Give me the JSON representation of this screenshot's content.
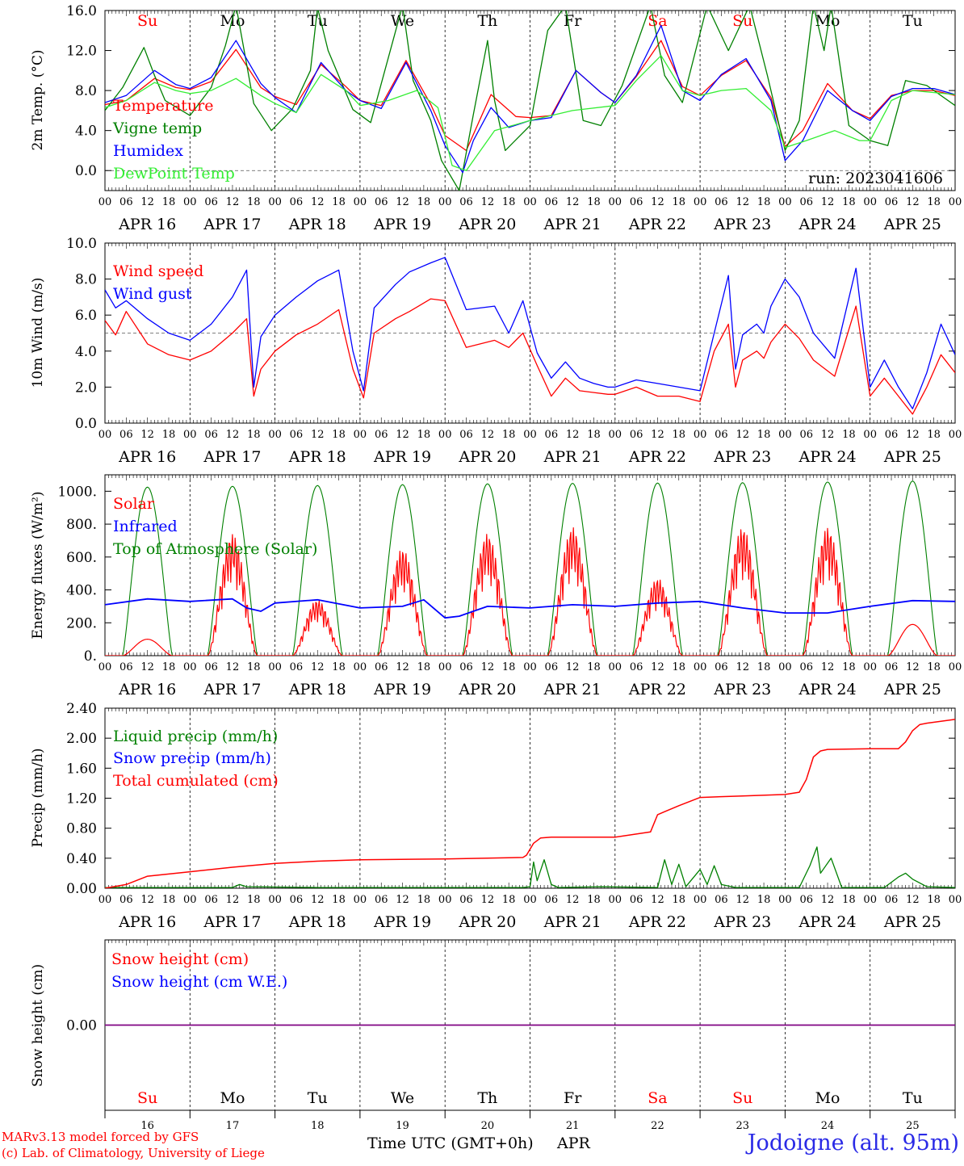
{
  "footer": {
    "credit_line1": "MARv3.13 model forced by GFS",
    "credit_line2": "(c) Lab. of Climatology, University of Liege",
    "x_title": "Time UTC (GMT+0h)",
    "x_month": "APR",
    "station": "Jodoigne (alt. 95m)"
  },
  "axis": {
    "hour_labels": [
      "00",
      "06",
      "12",
      "18"
    ],
    "final_hour_label": "00",
    "date_labels": [
      "APR 16",
      "APR 17",
      "APR 18",
      "APR 19",
      "APR 20",
      "APR 21",
      "APR 22",
      "APR 23",
      "APR 24",
      "APR 25"
    ],
    "day_names": [
      "Su",
      "Mo",
      "Tu",
      "We",
      "Th",
      "Fr",
      "Sa",
      "Su",
      "Mo",
      "Tu"
    ],
    "weekend_days": [
      0,
      6,
      7
    ],
    "day_numbers": [
      "16",
      "17",
      "18",
      "19",
      "20",
      "21",
      "22",
      "23",
      "24",
      "25"
    ]
  },
  "colors": {
    "red": "#ff0000",
    "green": "#008000",
    "blue": "#0000ff",
    "lightgreen": "#33ee33",
    "purple": "#800080"
  },
  "chart_data": [
    {
      "type": "line",
      "ylabel": "2m Temp. (°C)",
      "ylim": [
        -2,
        16
      ],
      "yticks": [
        "0.0",
        "4.0",
        "8.0",
        "12.0",
        "16.0"
      ],
      "yticks_values": [
        0,
        4,
        8,
        12,
        16
      ],
      "dashed_reference": 0,
      "annotation": "run: 2023041606",
      "x_unit": "hours since APR 16 00 UTC",
      "series": [
        {
          "name": "Temperature",
          "color": "#ff0000",
          "x": [
            0,
            6,
            14,
            20,
            24,
            30,
            37,
            44,
            48,
            54,
            61,
            68,
            72,
            78,
            85,
            92,
            96,
            102,
            109,
            116,
            120,
            126,
            133,
            140,
            144,
            150,
            157,
            163,
            168,
            174,
            181,
            188,
            192,
            197,
            204,
            211,
            216,
            222,
            228,
            234,
            240
          ],
          "values": [
            6.6,
            7.0,
            9.2,
            8.3,
            8.1,
            8.9,
            12.1,
            8.3,
            7.4,
            6.6,
            10.6,
            8.4,
            7.0,
            6.5,
            11.0,
            6.6,
            3.5,
            2.0,
            7.6,
            5.4,
            5.3,
            5.5,
            10.0,
            7.8,
            6.8,
            9.4,
            13.0,
            8.4,
            7.5,
            9.5,
            11.0,
            7.3,
            2.4,
            4.0,
            8.7,
            6.0,
            5.2,
            7.5,
            8.0,
            8.0,
            7.5
          ]
        },
        {
          "name": "Vigne temp",
          "color": "#008000",
          "x": [
            0,
            5,
            11,
            14,
            17,
            24,
            30,
            34,
            37,
            42,
            47,
            53,
            58,
            60,
            63,
            70,
            75,
            84,
            87,
            92,
            95,
            100,
            104,
            108,
            110,
            113,
            120,
            125,
            130,
            132,
            135,
            140,
            146,
            154,
            158,
            163,
            170,
            176,
            182,
            187,
            192,
            196,
            200,
            203,
            205,
            210,
            216,
            221,
            226,
            232,
            240
          ],
          "values": [
            6.0,
            8.3,
            12.3,
            9.5,
            7.0,
            5.5,
            8.3,
            12.5,
            16.5,
            6.7,
            4.0,
            6.2,
            10.0,
            16.3,
            12.0,
            6.1,
            4.8,
            16.5,
            9.0,
            5.0,
            1.0,
            -2.0,
            5.6,
            13.0,
            7.0,
            2.0,
            4.5,
            14.0,
            16.5,
            12.0,
            5.0,
            4.5,
            8.5,
            16.5,
            9.5,
            6.8,
            16.5,
            12.0,
            16.5,
            9.5,
            2.0,
            5.0,
            16.5,
            12.0,
            16.5,
            4.5,
            3.0,
            2.5,
            9.0,
            8.5,
            6.5
          ]
        },
        {
          "name": "Humidex",
          "color": "#0000ff",
          "x": [
            0,
            6,
            14,
            20,
            24,
            30,
            37,
            44,
            48,
            54,
            61,
            68,
            72,
            78,
            85,
            92,
            96,
            101,
            104,
            109,
            114,
            120,
            126,
            133,
            140,
            144,
            150,
            157,
            163,
            168,
            174,
            181,
            188,
            192,
            197,
            204,
            211,
            216,
            222,
            228,
            234,
            240
          ],
          "values": [
            6.8,
            7.5,
            10.0,
            8.6,
            8.2,
            9.3,
            13.0,
            8.7,
            7.3,
            5.8,
            10.8,
            8.0,
            7.0,
            6.2,
            10.8,
            6.0,
            2.5,
            -0.2,
            3.0,
            6.3,
            4.3,
            5.0,
            5.3,
            10.0,
            7.8,
            6.8,
            9.5,
            14.5,
            8.0,
            7.0,
            9.6,
            11.2,
            7.0,
            1.0,
            3.0,
            8.0,
            6.0,
            5.0,
            7.4,
            8.2,
            8.2,
            7.6
          ]
        },
        {
          "name": "DewPoint Temp",
          "color": "#33ee33",
          "x": [
            0,
            6,
            14,
            20,
            24,
            30,
            37,
            44,
            48,
            54,
            61,
            68,
            72,
            80,
            88,
            94,
            98,
            102,
            110,
            120,
            132,
            144,
            150,
            157,
            163,
            168,
            174,
            181,
            188,
            192,
            198,
            206,
            213,
            216,
            222,
            228,
            234,
            240
          ],
          "values": [
            6.3,
            7.0,
            8.8,
            8.0,
            7.7,
            8.0,
            9.2,
            7.5,
            6.7,
            5.8,
            9.6,
            8.0,
            6.5,
            7.0,
            8.0,
            6.3,
            0.5,
            0.0,
            4.0,
            5.0,
            6.0,
            6.5,
            9.0,
            11.5,
            8.0,
            7.5,
            8.0,
            8.2,
            6.0,
            2.3,
            3.0,
            4.0,
            3.0,
            3.0,
            7.0,
            8.0,
            7.8,
            7.6
          ]
        }
      ]
    },
    {
      "type": "line",
      "ylabel": "10m Wind (m/s)",
      "ylim": [
        0,
        10
      ],
      "yticks": [
        "0.0",
        "2.0",
        "4.0",
        "6.0",
        "8.0",
        "10.0"
      ],
      "yticks_values": [
        0,
        2,
        4,
        6,
        8,
        10
      ],
      "dashed_reference": 5,
      "x_unit": "hours since APR 16 00 UTC",
      "series": [
        {
          "name": "Wind speed",
          "color": "#ff0000",
          "x": [
            0,
            3,
            6,
            12,
            18,
            24,
            30,
            36,
            40,
            42,
            44,
            48,
            54,
            60,
            66,
            70,
            73,
            76,
            82,
            86,
            92,
            96,
            102,
            110,
            114,
            118,
            122,
            126,
            130,
            134,
            138,
            142,
            144,
            150,
            156,
            162,
            168,
            172,
            176,
            178,
            180,
            184,
            186,
            188,
            192,
            196,
            200,
            206,
            212,
            216,
            220,
            224,
            228,
            232,
            236,
            240
          ],
          "values": [
            5.7,
            4.9,
            6.2,
            4.4,
            3.8,
            3.5,
            4.0,
            5.0,
            5.8,
            1.5,
            3.0,
            4.0,
            4.9,
            5.5,
            6.3,
            3.0,
            1.4,
            5.0,
            5.8,
            6.2,
            6.9,
            6.8,
            4.2,
            4.6,
            4.2,
            5.0,
            3.2,
            1.5,
            2.5,
            1.8,
            1.7,
            1.6,
            1.6,
            2.0,
            1.5,
            1.5,
            1.2,
            4.0,
            5.5,
            2.0,
            3.5,
            4.0,
            3.6,
            4.5,
            5.5,
            4.7,
            3.5,
            2.6,
            6.5,
            1.5,
            2.5,
            1.5,
            0.5,
            2.0,
            3.8,
            2.8
          ]
        },
        {
          "name": "Wind gust",
          "color": "#0000ff",
          "x": [
            0,
            3,
            6,
            12,
            18,
            24,
            30,
            36,
            40,
            42,
            44,
            48,
            54,
            60,
            66,
            70,
            73,
            76,
            82,
            86,
            92,
            96,
            102,
            110,
            114,
            118,
            122,
            126,
            130,
            134,
            138,
            142,
            144,
            150,
            156,
            162,
            168,
            172,
            176,
            178,
            180,
            184,
            186,
            188,
            192,
            196,
            200,
            206,
            212,
            216,
            220,
            224,
            228,
            232,
            236,
            240
          ],
          "values": [
            7.4,
            6.4,
            6.8,
            5.8,
            5.0,
            4.6,
            5.5,
            7.0,
            8.5,
            2.0,
            4.8,
            6.0,
            7.0,
            7.9,
            8.5,
            4.0,
            1.8,
            6.4,
            7.7,
            8.4,
            8.9,
            9.2,
            6.3,
            6.5,
            5.0,
            6.8,
            3.9,
            2.5,
            3.4,
            2.5,
            2.2,
            2.0,
            2.0,
            2.4,
            2.2,
            2.0,
            1.8,
            5.0,
            8.2,
            3.0,
            4.9,
            5.5,
            5.0,
            6.5,
            8.0,
            7.0,
            5.0,
            3.6,
            8.6,
            2.0,
            3.5,
            2.0,
            0.8,
            2.8,
            5.5,
            3.8
          ]
        }
      ]
    },
    {
      "type": "line",
      "ylabel": "Energy fluxes (W/m²)",
      "ylim": [
        0,
        1100
      ],
      "yticks": [
        "0.",
        "200.",
        "400.",
        "600.",
        "800.",
        "1000."
      ],
      "yticks_values": [
        0,
        200,
        400,
        600,
        800,
        1000
      ],
      "x_unit": "hours since APR 16 00 UTC",
      "toa_peak_by_day": [
        1025,
        1030,
        1035,
        1040,
        1045,
        1048,
        1050,
        1052,
        1056,
        1062
      ],
      "solar_peak_by_day": [
        100,
        740,
        340,
        650,
        740,
        780,
        470,
        780,
        780,
        190
      ],
      "series": [
        {
          "name": "Solar",
          "color": "#ff0000"
        },
        {
          "name": "Infrared",
          "color": "#0000ff",
          "x": [
            0,
            12,
            24,
            36,
            40,
            44,
            48,
            60,
            72,
            84,
            90,
            96,
            100,
            108,
            120,
            132,
            144,
            156,
            168,
            180,
            192,
            204,
            216,
            228,
            240
          ],
          "values": [
            310,
            345,
            330,
            345,
            290,
            270,
            320,
            340,
            290,
            300,
            340,
            230,
            240,
            300,
            290,
            310,
            300,
            320,
            330,
            290,
            260,
            260,
            300,
            335,
            330
          ]
        },
        {
          "name": "Top of Atmosphere (Solar)",
          "color": "#008000"
        }
      ]
    },
    {
      "type": "line",
      "ylabel": "Precip (mm/h)",
      "ylim": [
        0,
        2.4
      ],
      "yticks": [
        "0.00",
        "0.40",
        "0.80",
        "1.20",
        "1.60",
        "2.00",
        "2.40"
      ],
      "yticks_values": [
        0,
        0.4,
        0.8,
        1.2,
        1.6,
        2.0,
        2.4
      ],
      "x_unit": "hours since APR 16 00 UTC",
      "series": [
        {
          "name": "Liquid precip (mm/h)",
          "color": "#008000",
          "x": [
            0,
            36,
            38,
            40,
            60,
            118,
            120,
            121,
            122,
            124,
            126,
            128,
            140,
            156,
            158,
            160,
            162,
            164,
            168,
            170,
            172,
            174,
            178,
            180,
            196,
            199,
            201,
            202,
            205,
            208,
            220,
            224,
            226,
            228,
            232,
            240
          ],
          "values": [
            0.01,
            0.01,
            0.05,
            0.02,
            0.01,
            0.01,
            0.02,
            0.35,
            0.1,
            0.38,
            0.05,
            0.01,
            0.02,
            0.01,
            0.38,
            0.05,
            0.32,
            0.02,
            0.25,
            0.05,
            0.3,
            0.05,
            0.01,
            0.01,
            0.01,
            0.3,
            0.55,
            0.2,
            0.4,
            0.01,
            0.01,
            0.15,
            0.2,
            0.12,
            0.02,
            0.01
          ]
        },
        {
          "name": "Snow precip (mm/h)",
          "color": "#0000ff"
        },
        {
          "name": "Total cumulated (cm)",
          "color": "#ff0000",
          "x": [
            0,
            6,
            12,
            24,
            36,
            48,
            60,
            72,
            96,
            108,
            118,
            119,
            121,
            123,
            126,
            144,
            154,
            156,
            158,
            162,
            168,
            180,
            192,
            196,
            198,
            200,
            202,
            204,
            216,
            224,
            226,
            228,
            230,
            232,
            240
          ],
          "values": [
            0.0,
            0.05,
            0.16,
            0.22,
            0.28,
            0.33,
            0.36,
            0.38,
            0.39,
            0.4,
            0.41,
            0.44,
            0.6,
            0.67,
            0.68,
            0.68,
            0.75,
            0.98,
            1.02,
            1.1,
            1.21,
            1.23,
            1.25,
            1.28,
            1.45,
            1.75,
            1.83,
            1.85,
            1.86,
            1.86,
            1.95,
            2.1,
            2.18,
            2.2,
            2.25
          ]
        }
      ]
    },
    {
      "type": "line",
      "ylabel": "Snow height (cm)",
      "ylim": [
        -1,
        1
      ],
      "yticks": [
        "0.00"
      ],
      "yticks_values": [
        0
      ],
      "x_unit": "hours since APR 16 00 UTC",
      "series": [
        {
          "name": "Snow height (cm)",
          "color": "#ff0000",
          "x": [
            0,
            240
          ],
          "values": [
            0,
            0
          ]
        },
        {
          "name": "Snow height (cm W.E.)",
          "color": "#0000ff",
          "x": [
            0,
            240
          ],
          "values": [
            0,
            0
          ]
        }
      ]
    }
  ]
}
